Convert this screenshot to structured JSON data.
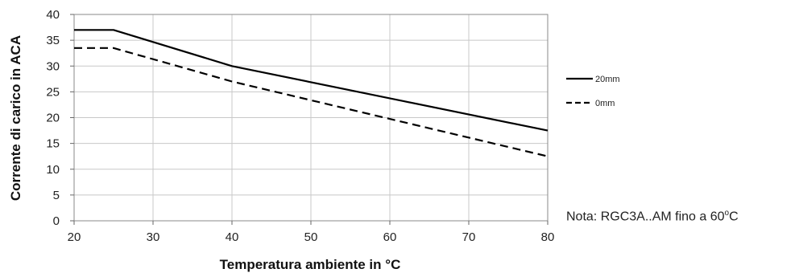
{
  "chart_data": {
    "type": "line",
    "xlabel": "Temperatura ambiente in °C",
    "ylabel": "Corrente di carico in ACA",
    "xlim": [
      20,
      80
    ],
    "ylim": [
      0,
      40
    ],
    "x_ticks": [
      20,
      30,
      40,
      50,
      60,
      70,
      80
    ],
    "y_ticks": [
      0,
      5,
      10,
      15,
      20,
      25,
      30,
      35,
      40
    ],
    "grid": true,
    "legend_position": "right",
    "series": [
      {
        "name": "20mm",
        "style": "solid",
        "color": "#000000",
        "points": [
          [
            20,
            37
          ],
          [
            25,
            37
          ],
          [
            40,
            30
          ],
          [
            80,
            17.5
          ]
        ]
      },
      {
        "name": "0mm",
        "style": "dashed",
        "color": "#000000",
        "points": [
          [
            20,
            33.5
          ],
          [
            25,
            33.5
          ],
          [
            40,
            27
          ],
          [
            80,
            12.5
          ]
        ]
      }
    ]
  },
  "note": {
    "prefix": "Nota: RGC3A..AM fino a 60",
    "degree": "o",
    "suffix": "C"
  }
}
